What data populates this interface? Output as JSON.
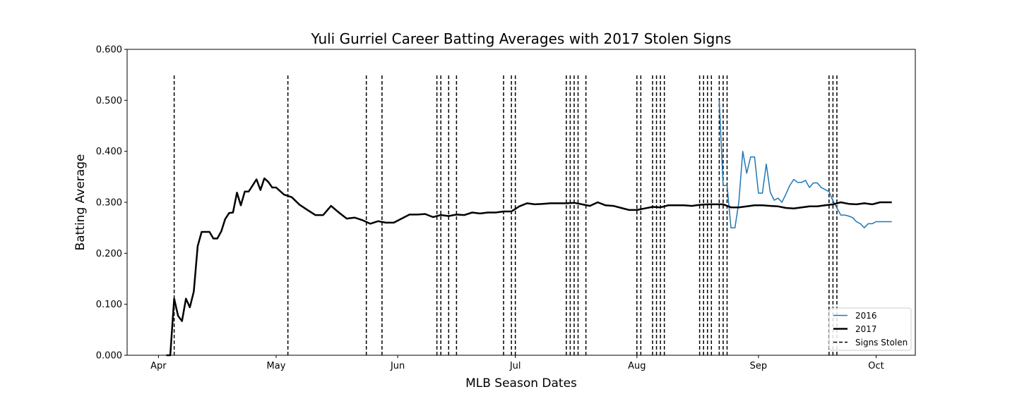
{
  "chart_data": {
    "type": "line",
    "title": "Yuli Gurriel Career Batting Averages with 2017 Stolen Signs",
    "xlabel": "MLB Season Dates",
    "ylabel": "Batting Average",
    "x_ticks": [
      {
        "label": "Apr",
        "date": "04-01"
      },
      {
        "label": "May",
        "date": "05-01"
      },
      {
        "label": "Jun",
        "date": "06-01"
      },
      {
        "label": "Jul",
        "date": "07-01"
      },
      {
        "label": "Aug",
        "date": "08-01"
      },
      {
        "label": "Sep",
        "date": "09-01"
      },
      {
        "label": "Oct",
        "date": "10-01"
      }
    ],
    "xlim": [
      "03-24",
      "10-11"
    ],
    "ylim": [
      0,
      0.6
    ],
    "y_ticks": [
      "0.000",
      "0.100",
      "0.200",
      "0.300",
      "0.400",
      "0.500",
      "0.600"
    ],
    "grid": false,
    "legend_position": "bottom-right",
    "series": [
      {
        "name": "2016",
        "color": "#1f77b4",
        "dates": [
          "08-22",
          "08-23",
          "08-24",
          "08-25",
          "08-26",
          "08-27",
          "08-28",
          "08-29",
          "08-30",
          "08-31",
          "09-01",
          "09-02",
          "09-03",
          "09-04",
          "09-05",
          "09-06",
          "09-07",
          "09-08",
          "09-09",
          "09-10",
          "09-11",
          "09-12",
          "09-13",
          "09-14",
          "09-15",
          "09-16",
          "09-17",
          "09-18",
          "09-19",
          "09-20",
          "09-21",
          "09-22",
          "09-23",
          "09-24",
          "09-25",
          "09-26",
          "09-27",
          "09-28",
          "09-29",
          "09-30",
          "10-01",
          "10-02",
          "10-03",
          "10-04",
          "10-05"
        ],
        "values": [
          0.5,
          0.333,
          0.333,
          0.25,
          0.25,
          0.3,
          0.4,
          0.357,
          0.389,
          0.389,
          0.318,
          0.318,
          0.375,
          0.32,
          0.304,
          0.308,
          0.3,
          0.316,
          0.333,
          0.345,
          0.339,
          0.339,
          0.343,
          0.329,
          0.338,
          0.338,
          0.329,
          0.325,
          0.321,
          0.303,
          0.289,
          0.275,
          0.275,
          0.273,
          0.27,
          0.262,
          0.258,
          0.25,
          0.258,
          0.258,
          0.262,
          0.262,
          0.262,
          0.262,
          0.262
        ]
      },
      {
        "name": "2017",
        "color": "#000000",
        "dates": [
          "04-03",
          "04-04",
          "04-05",
          "04-06",
          "04-07",
          "04-08",
          "04-09",
          "04-10",
          "04-11",
          "04-12",
          "04-13",
          "04-14",
          "04-15",
          "04-16",
          "04-17",
          "04-18",
          "04-19",
          "04-20",
          "04-21",
          "04-22",
          "04-23",
          "04-24",
          "04-25",
          "04-26",
          "04-27",
          "04-28",
          "04-29",
          "04-30",
          "05-01",
          "05-03",
          "05-05",
          "05-07",
          "05-09",
          "05-11",
          "05-13",
          "05-15",
          "05-17",
          "05-19",
          "05-21",
          "05-23",
          "05-25",
          "05-27",
          "05-29",
          "05-31",
          "06-02",
          "06-04",
          "06-06",
          "06-08",
          "06-10",
          "06-12",
          "06-14",
          "06-16",
          "06-18",
          "06-20",
          "06-22",
          "06-24",
          "06-26",
          "06-28",
          "06-30",
          "07-02",
          "07-04",
          "07-06",
          "07-08",
          "07-10",
          "07-12",
          "07-14",
          "07-16",
          "07-18",
          "07-20",
          "07-22",
          "07-24",
          "07-26",
          "07-28",
          "07-30",
          "08-01",
          "08-03",
          "08-05",
          "08-07",
          "08-09",
          "08-11",
          "08-13",
          "08-15",
          "08-17",
          "08-19",
          "08-21",
          "08-23",
          "08-25",
          "08-27",
          "08-29",
          "08-31",
          "09-02",
          "09-04",
          "09-06",
          "09-08",
          "09-10",
          "09-12",
          "09-14",
          "09-16",
          "09-18",
          "09-20",
          "09-22",
          "09-24",
          "09-26",
          "09-28",
          "09-30",
          "10-02",
          "10-04",
          "10-05"
        ],
        "values": [
          0.0,
          0.0,
          0.111,
          0.077,
          0.067,
          0.111,
          0.094,
          0.125,
          0.214,
          0.242,
          0.242,
          0.242,
          0.229,
          0.229,
          0.243,
          0.267,
          0.279,
          0.28,
          0.319,
          0.294,
          0.321,
          0.321,
          0.333,
          0.345,
          0.324,
          0.347,
          0.34,
          0.329,
          0.329,
          0.315,
          0.31,
          0.295,
          0.285,
          0.275,
          0.275,
          0.293,
          0.28,
          0.268,
          0.27,
          0.265,
          0.258,
          0.263,
          0.26,
          0.26,
          0.268,
          0.276,
          0.276,
          0.277,
          0.271,
          0.275,
          0.273,
          0.276,
          0.275,
          0.28,
          0.278,
          0.28,
          0.28,
          0.282,
          0.282,
          0.292,
          0.298,
          0.296,
          0.297,
          0.298,
          0.298,
          0.298,
          0.299,
          0.296,
          0.293,
          0.3,
          0.294,
          0.293,
          0.289,
          0.285,
          0.285,
          0.288,
          0.291,
          0.29,
          0.294,
          0.294,
          0.294,
          0.293,
          0.295,
          0.296,
          0.296,
          0.296,
          0.29,
          0.29,
          0.292,
          0.294,
          0.294,
          0.293,
          0.292,
          0.289,
          0.288,
          0.29,
          0.292,
          0.292,
          0.294,
          0.296,
          0.3,
          0.297,
          0.296,
          0.298,
          0.296,
          0.3,
          0.3,
          0.3
        ]
      }
    ],
    "signs_stolen": {
      "name": "Signs Stolen",
      "color": "#000000",
      "dates": [
        "04-05",
        "05-04",
        "05-24",
        "05-28",
        "06-11",
        "06-12",
        "06-14",
        "06-16",
        "06-28",
        "06-30",
        "07-01",
        "07-14",
        "07-15",
        "07-16",
        "07-17",
        "07-19",
        "08-01",
        "08-02",
        "08-05",
        "08-06",
        "08-07",
        "08-08",
        "08-17",
        "08-18",
        "08-19",
        "08-20",
        "08-22",
        "08-23",
        "08-24",
        "09-19",
        "09-20",
        "09-21"
      ],
      "ymax": 0.55
    }
  }
}
